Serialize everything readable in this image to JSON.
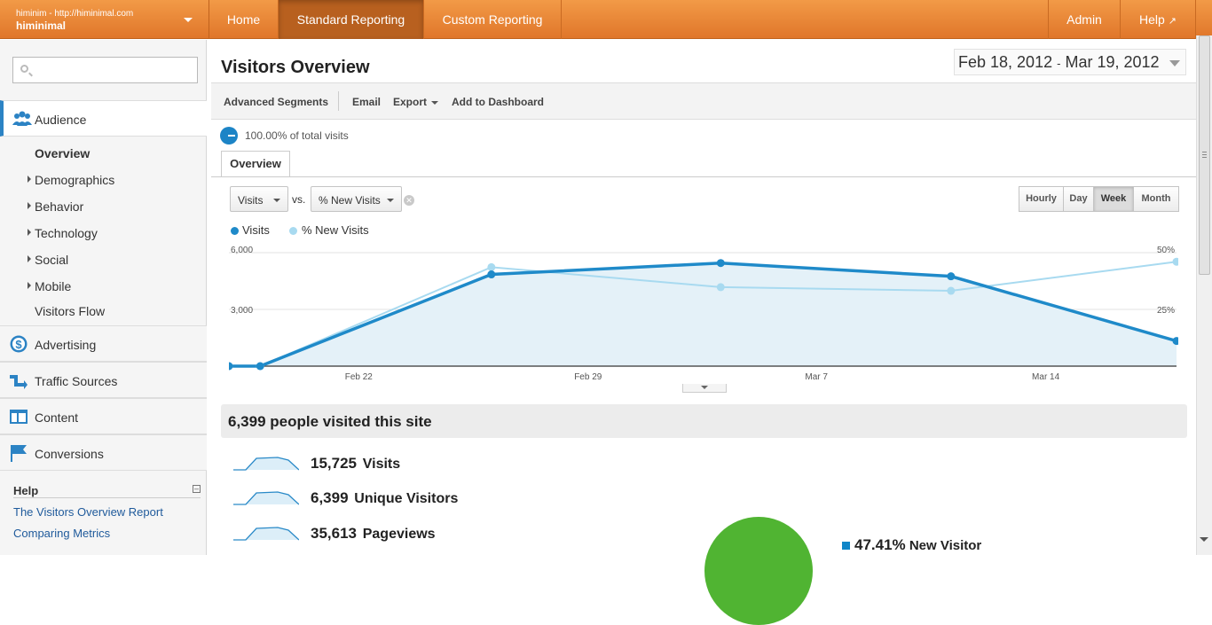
{
  "topnav": {
    "account_url": "himinim - http://himinimal.com",
    "account_name": "himinimal",
    "tabs": [
      {
        "label": "Home",
        "active": false
      },
      {
        "label": "Standard Reporting",
        "active": true
      },
      {
        "label": "Custom Reporting",
        "active": false
      }
    ],
    "admin_label": "Admin",
    "help_label": "Help"
  },
  "sidebar": {
    "search_placeholder": "",
    "sections": [
      {
        "label": "Audience",
        "icon": "people-icon",
        "selected": true
      },
      {
        "label": "Advertising",
        "icon": "dollar-icon"
      },
      {
        "label": "Traffic Sources",
        "icon": "arrows-icon"
      },
      {
        "label": "Content",
        "icon": "content-icon"
      },
      {
        "label": "Conversions",
        "icon": "flag-icon"
      }
    ],
    "audience_items": [
      "Overview",
      "Demographics",
      "Behavior",
      "Technology",
      "Social",
      "Mobile",
      "Visitors Flow"
    ],
    "help_title": "Help",
    "help_links": [
      "The Visitors Overview Report",
      "Comparing Metrics"
    ]
  },
  "main": {
    "title": "Visitors Overview",
    "date_start": "Feb 18, 2012",
    "date_sep": "-",
    "date_end": "Mar 19, 2012",
    "toolbar": {
      "segments": "Advanced Segments",
      "email": "Email",
      "export": "Export",
      "dashboard": "Add to Dashboard"
    },
    "percent_of_total": "100.00% of total visits",
    "tab": "Overview",
    "metric_select": "Visits",
    "vs_label": "vs.",
    "compare_select": "% New Visits",
    "granularity": [
      "Hourly",
      "Day",
      "Week",
      "Month"
    ],
    "granularity_selected": "Week",
    "people_headline": "6,399 people visited this site",
    "metrics": [
      {
        "value": "15,725",
        "name": "Visits"
      },
      {
        "value": "6,399",
        "name": "Unique Visitors"
      },
      {
        "value": "35,613",
        "name": "Pageviews"
      }
    ],
    "pie_legend": {
      "value": "47.41%",
      "name": "New Visitor"
    }
  },
  "chart_data": {
    "type": "line",
    "series": [
      {
        "name": "Visits",
        "color": "#1f8ac9",
        "axis": "left",
        "x": [
          0,
          0.033,
          0.277,
          0.519,
          0.762,
          1.0
        ],
        "values": [
          0,
          0,
          4850,
          5450,
          4750,
          1330
        ]
      },
      {
        "name": "% New Visits",
        "color": "#a8daf0",
        "axis": "right",
        "x": [
          0,
          0.033,
          0.277,
          0.519,
          0.762,
          1.0
        ],
        "values": [
          0,
          0,
          43.6,
          34.8,
          33.2,
          46.0
        ]
      }
    ],
    "x_tick_labels": [
      "Feb 22",
      "Feb 29",
      "Mar 7",
      "Mar 14"
    ],
    "y_left_ticks": [
      "6,000",
      "3,000"
    ],
    "y_right_ticks": [
      "50%",
      "25%"
    ],
    "ylim_left": [
      0,
      6000
    ],
    "ylim_right": [
      0,
      50
    ],
    "grid": true,
    "legend_position": "top-left"
  },
  "colors": {
    "nav_orange": "#e98a3a",
    "accent_blue": "#1f8ac9",
    "light_blue": "#a8daf0",
    "pie_green": "#50b432"
  }
}
